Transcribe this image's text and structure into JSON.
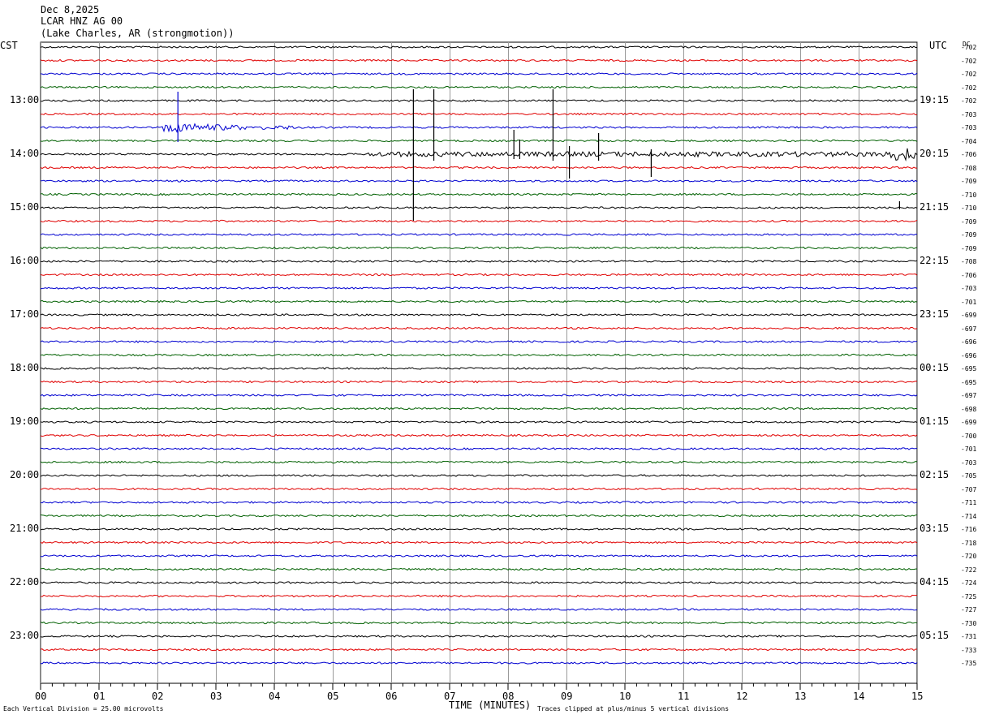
{
  "header": {
    "date": "Dec 8,2025",
    "channel": "LCAR HNZ AG 00",
    "location": "(Lake Charles, AR (strongmotion))"
  },
  "left_axis_label": "CST",
  "right_axis_label": "UTC",
  "dc_label": "DC",
  "footer": {
    "division_note": "Each Vertical Division =   25.00 microvolts",
    "xlabel": "TIME (MINUTES)",
    "clip_note": "Traces clipped at plus/minus 5 vertical divisions"
  },
  "chart_data": {
    "type": "line",
    "title": "LCAR HNZ AG 00",
    "xlabel": "TIME (MINUTES)",
    "xlim": [
      0,
      15
    ],
    "x_ticks": [
      "00",
      "01",
      "02",
      "03",
      "04",
      "05",
      "06",
      "07",
      "08",
      "09",
      "10",
      "11",
      "12",
      "13",
      "14",
      "15"
    ],
    "trace_minutes": 15,
    "trace_colors": [
      "#000000",
      "#e00000",
      "#0000d0",
      "#006000"
    ],
    "grid": true,
    "cst_labels": [
      "13:00",
      "14:00",
      "15:00",
      "16:00",
      "17:00",
      "18:00",
      "19:00",
      "20:00",
      "21:00",
      "22:00",
      "23:00"
    ],
    "utc_labels": [
      "19:15",
      "20:15",
      "21:15",
      "22:15",
      "23:15",
      "00:15",
      "01:15",
      "02:15",
      "03:15",
      "04:15",
      "05:15"
    ],
    "dc_offsets": [
      "-702",
      "-702",
      "-702",
      "-702",
      "-702",
      "-703",
      "-703",
      "-704",
      "-706",
      "-708",
      "-709",
      "-710",
      "-710",
      "-709",
      "-709",
      "-709",
      "-708",
      "-706",
      "-703",
      "-701",
      "-699",
      "-697",
      "-696",
      "-696",
      "-695",
      "-695",
      "-697",
      "-698",
      "-699",
      "-700",
      "-701",
      "-703",
      "-705",
      "-707",
      "-711",
      "-714",
      "-716",
      "-718",
      "-720",
      "-722",
      "-724",
      "-725",
      "-727",
      "-730",
      "-731",
      "-733",
      "-735"
    ],
    "events": [
      {
        "trace": 6,
        "start_min": 2.1,
        "end_min": 3.5,
        "peak_min": 2.35,
        "description": "earthquake signal"
      },
      {
        "trace": 6,
        "start_min": 3.8,
        "end_min": 4.4,
        "description": "coda"
      },
      {
        "trace": 8,
        "start_min": 5.6,
        "end_min": 15.0,
        "description": "elevated noise"
      },
      {
        "trace": 8,
        "start_min": 14.5,
        "end_min": 14.95,
        "description": "burst"
      }
    ]
  }
}
